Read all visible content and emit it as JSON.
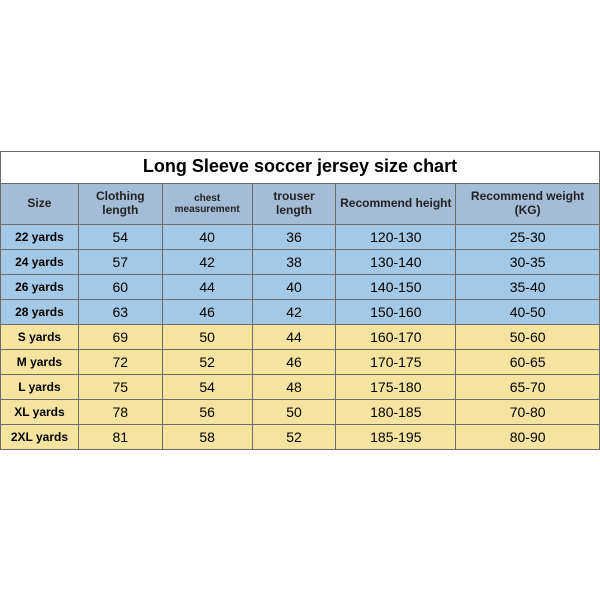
{
  "title": "Long Sleeve soccer jersey size chart",
  "columns": [
    "Size",
    "Clothing length",
    "chest measurement",
    "trouser length",
    "Recommend height",
    "Recommend weight (KG)"
  ],
  "colors": {
    "header_bg": "#a4bcd6",
    "blue_row_bg": "#a4c9e6",
    "yellow_row_bg": "#f5e3a0",
    "border": "#6b6b6b",
    "title_bg": "#ffffff",
    "text": "#000000"
  },
  "rows": [
    {
      "group": "blue",
      "size": "22 yards",
      "clothing": "54",
      "chest": "40",
      "trouser": "36",
      "height": "120-130",
      "weight": "25-30"
    },
    {
      "group": "blue",
      "size": "24 yards",
      "clothing": "57",
      "chest": "42",
      "trouser": "38",
      "height": "130-140",
      "weight": "30-35"
    },
    {
      "group": "blue",
      "size": "26 yards",
      "clothing": "60",
      "chest": "44",
      "trouser": "40",
      "height": "140-150",
      "weight": "35-40"
    },
    {
      "group": "blue",
      "size": "28 yards",
      "clothing": "63",
      "chest": "46",
      "trouser": "42",
      "height": "150-160",
      "weight": "40-50"
    },
    {
      "group": "yellow",
      "size": "S yards",
      "clothing": "69",
      "chest": "50",
      "trouser": "44",
      "height": "160-170",
      "weight": "50-60"
    },
    {
      "group": "yellow",
      "size": "M yards",
      "clothing": "72",
      "chest": "52",
      "trouser": "46",
      "height": "170-175",
      "weight": "60-65"
    },
    {
      "group": "yellow",
      "size": "L yards",
      "clothing": "75",
      "chest": "54",
      "trouser": "48",
      "height": "175-180",
      "weight": "65-70"
    },
    {
      "group": "yellow",
      "size": "XL yards",
      "clothing": "78",
      "chest": "56",
      "trouser": "50",
      "height": "180-185",
      "weight": "70-80"
    },
    {
      "group": "yellow",
      "size": "2XL yards",
      "clothing": "81",
      "chest": "58",
      "trouser": "52",
      "height": "185-195",
      "weight": "80-90"
    }
  ]
}
